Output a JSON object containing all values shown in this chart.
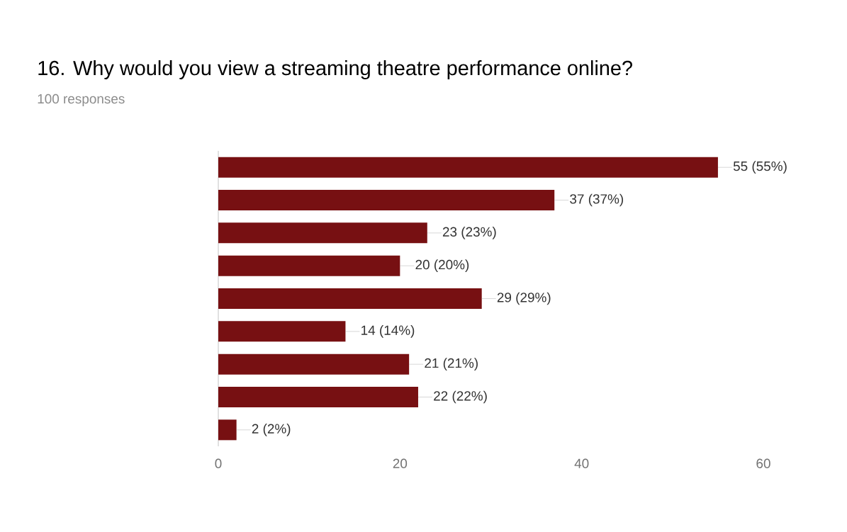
{
  "chart_data": {
    "type": "bar",
    "orientation": "horizontal",
    "title": "16. Why would you view a streaming theatre performance online?",
    "subtitle": "100 responses",
    "categories": [
      null,
      null,
      null,
      null,
      null,
      null,
      null,
      null,
      null
    ],
    "values": [
      55,
      37,
      23,
      20,
      29,
      14,
      21,
      22,
      2
    ],
    "value_labels": [
      "55 (55%)",
      "37 (37%)",
      "23 (23%)",
      "20 (20%)",
      "29 (29%)",
      "14 (14%)",
      "21 (21%)",
      "22 (22%)",
      "2 (2%)"
    ],
    "color": "#771012",
    "xlim": [
      0,
      60
    ],
    "xticks": [
      0,
      20,
      40,
      60
    ],
    "grid": false
  }
}
